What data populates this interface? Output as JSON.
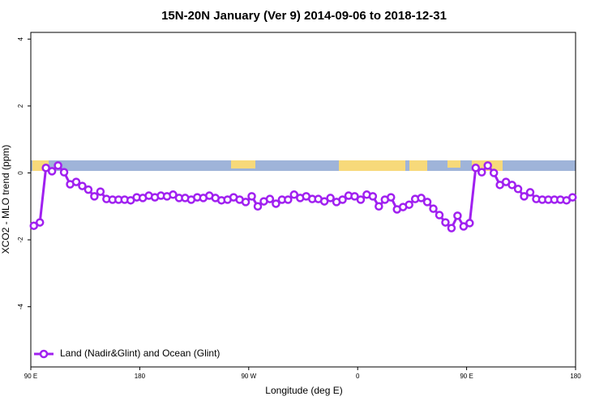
{
  "chart_data": {
    "type": "line",
    "title": "15N-20N January (Ver 9)   2014-09-06 to 2018-12-31",
    "x_label": "Longitude (deg E)",
    "y_label": "XCO2 - MLO trend (ppm)",
    "xlim": [
      90,
      540
    ],
    "ylim": [
      -5.8,
      4.2
    ],
    "xticks": [
      {
        "value": 90,
        "label": "90 E"
      },
      {
        "value": 180,
        "label": "180"
      },
      {
        "value": 270,
        "label": "90 W"
      },
      {
        "value": 360,
        "label": "0"
      },
      {
        "value": 450,
        "label": "90 E"
      },
      {
        "value": 540,
        "label": "180"
      }
    ],
    "yticks": [
      4,
      2,
      0,
      -2,
      -4
    ],
    "legend": "bottom-left",
    "x": [
      92.5,
      97.5,
      102.5,
      107.5,
      112.5,
      117.5,
      122.5,
      127.5,
      132.5,
      137.5,
      142.5,
      147.5,
      152.5,
      157.5,
      162.5,
      167.5,
      172.5,
      177.5,
      182.5,
      187.5,
      192.5,
      197.5,
      202.5,
      207.5,
      212.5,
      217.5,
      222.5,
      227.5,
      232.5,
      237.5,
      242.5,
      247.5,
      252.5,
      257.5,
      262.5,
      267.5,
      272.5,
      277.5,
      282.5,
      287.5,
      292.5,
      297.5,
      302.5,
      307.5,
      312.5,
      317.5,
      322.5,
      327.5,
      332.5,
      337.5,
      342.5,
      347.5,
      352.5,
      357.5,
      362.5,
      367.5,
      372.5,
      377.5,
      382.5,
      387.5,
      392.5,
      397.5,
      402.5,
      407.5,
      412.5,
      417.5,
      422.5,
      427.5,
      432.5,
      437.5,
      442.5,
      447.5,
      452.5,
      457.5,
      462.5,
      467.5,
      472.5,
      477.5,
      482.5,
      487.5,
      492.5,
      497.5,
      502.5,
      507.5,
      512.5,
      517.5,
      522.5,
      527.5,
      532.5,
      537.5
    ],
    "series": [
      {
        "name": "Land (Nadir&Glint) and Ocean (Glint)",
        "color": "#a020f0",
        "values": [
          -1.58,
          -1.48,
          0.15,
          0.05,
          0.22,
          0.02,
          -0.34,
          -0.27,
          -0.39,
          -0.5,
          -0.7,
          -0.56,
          -0.78,
          -0.8,
          -0.8,
          -0.8,
          -0.82,
          -0.73,
          -0.75,
          -0.68,
          -0.73,
          -0.68,
          -0.7,
          -0.65,
          -0.75,
          -0.75,
          -0.8,
          -0.73,
          -0.75,
          -0.68,
          -0.75,
          -0.82,
          -0.8,
          -0.73,
          -0.8,
          -0.87,
          -0.7,
          -1.0,
          -0.85,
          -0.78,
          -0.92,
          -0.8,
          -0.8,
          -0.65,
          -0.75,
          -0.7,
          -0.78,
          -0.78,
          -0.85,
          -0.75,
          -0.87,
          -0.8,
          -0.68,
          -0.7,
          -0.8,
          -0.65,
          -0.7,
          -1.0,
          -0.8,
          -0.73,
          -1.09,
          -1.02,
          -0.95,
          -0.78,
          -0.75,
          -0.87,
          -1.07,
          -1.26,
          -1.48,
          -1.65,
          -1.28,
          -1.6,
          -1.5,
          0.15,
          0.02,
          0.22,
          0.0,
          -0.36,
          -0.27,
          -0.36,
          -0.48,
          -0.7,
          -0.58,
          -0.78,
          -0.8,
          -0.8,
          -0.8,
          -0.8,
          -0.82,
          -0.73
        ]
      }
    ]
  }
}
